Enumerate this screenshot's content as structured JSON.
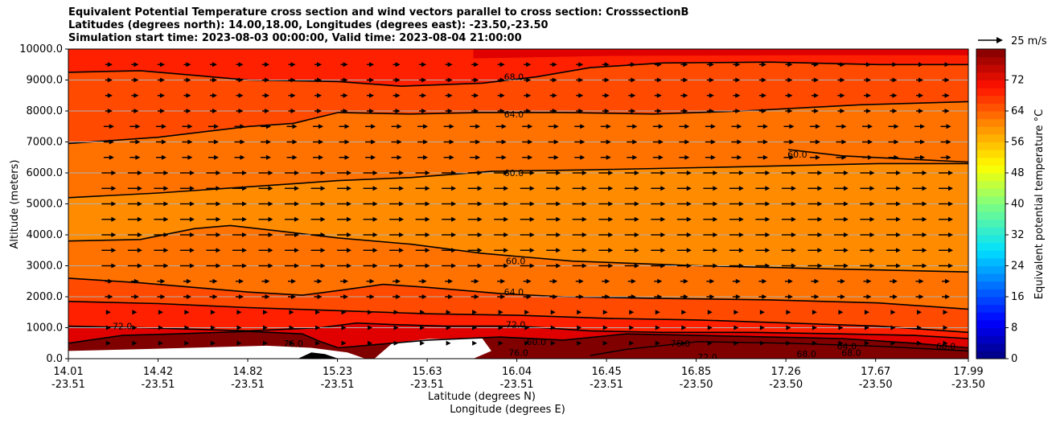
{
  "title_lines": [
    "Equivalent Potential Temperature cross section and wind vectors parallel to cross section: CrosssectionB",
    "Latitudes (degrees north): 14.00,18.00, Longitudes (degrees east): -23.50,-23.50",
    "Simulation start time: 2023-08-03 00:00:00, Valid time: 2023-08-04 21:00:00"
  ],
  "chart_data": {
    "type": "contourf",
    "title": "Equivalent Potential Temperature cross section and wind vectors parallel to cross section: CrosssectionB",
    "xlabel": "Latitude (degrees N)",
    "xlabel2": "Longitude (degrees E)",
    "ylabel": "Altitude (meters)",
    "ylim": [
      0,
      10000
    ],
    "x_ticks": [
      {
        "lat": "14.01",
        "lon": "-23.51"
      },
      {
        "lat": "14.42",
        "lon": "-23.51"
      },
      {
        "lat": "14.82",
        "lon": "-23.51"
      },
      {
        "lat": "15.23",
        "lon": "-23.51"
      },
      {
        "lat": "15.63",
        "lon": "-23.51"
      },
      {
        "lat": "16.04",
        "lon": "-23.51"
      },
      {
        "lat": "16.45",
        "lon": "-23.51"
      },
      {
        "lat": "16.85",
        "lon": "-23.50"
      },
      {
        "lat": "17.26",
        "lon": "-23.50"
      },
      {
        "lat": "17.67",
        "lon": "-23.50"
      },
      {
        "lat": "17.99",
        "lon": "-23.50"
      }
    ],
    "y_ticks": [
      "0.0",
      "1000.0",
      "2000.0",
      "3000.0",
      "4000.0",
      "5000.0",
      "6000.0",
      "7000.0",
      "8000.0",
      "9000.0",
      "10000.0"
    ],
    "colorbar": {
      "label": "Equivalent potential temperature °C",
      "ticks": [
        "0",
        "8",
        "16",
        "24",
        "32",
        "40",
        "48",
        "56",
        "64",
        "72"
      ],
      "range": [
        0,
        80
      ]
    },
    "quiver_key": "25 m/s",
    "contour_labels": [
      {
        "text": "68.0",
        "x": 0.495,
        "alt": 9100
      },
      {
        "text": "64.0",
        "x": 0.495,
        "alt": 7900
      },
      {
        "text": "60.0",
        "x": 0.495,
        "alt": 6000
      },
      {
        "text": "60.0",
        "x": 0.497,
        "alt": 3150
      },
      {
        "text": "64.0",
        "x": 0.495,
        "alt": 2150
      },
      {
        "text": "72.0",
        "x": 0.497,
        "alt": 1100
      },
      {
        "text": "72.0",
        "x": 0.06,
        "alt": 1050
      },
      {
        "text": "76.0",
        "x": 0.25,
        "alt": 500
      },
      {
        "text": "76.0",
        "x": 0.68,
        "alt": 500
      },
      {
        "text": "72.0",
        "x": 0.71,
        "alt": 50
      },
      {
        "text": "76.0",
        "x": 0.5,
        "alt": 200
      },
      {
        "text": "68.0",
        "x": 0.82,
        "alt": 150
      },
      {
        "text": "68.0",
        "x": 0.87,
        "alt": 200
      },
      {
        "text": "64.0",
        "x": 0.865,
        "alt": 400
      },
      {
        "text": "60.0",
        "x": 0.975,
        "alt": 400
      },
      {
        "text": "60.0",
        "x": 0.52,
        "alt": 550
      },
      {
        "text": "60.0",
        "x": 0.81,
        "alt": 6600
      }
    ]
  },
  "colors": {
    "dark_red": "#800000",
    "red": "#e00000",
    "red_orange": "#ff2000",
    "orange_red": "#ff4a00",
    "orange": "#ff7200",
    "amber": "#ff8c00"
  }
}
